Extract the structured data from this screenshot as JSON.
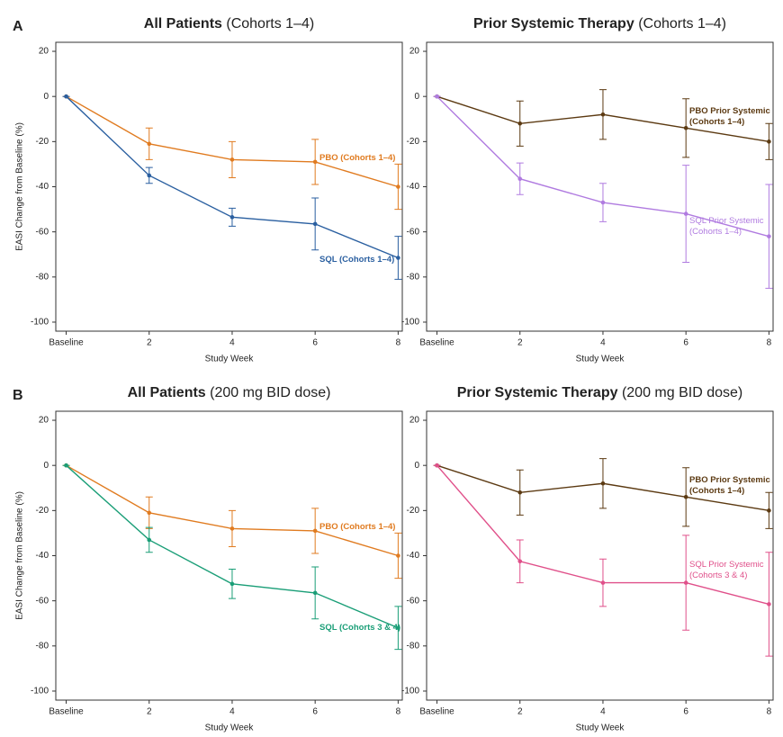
{
  "panel_labels": [
    "A",
    "B"
  ],
  "chart_data": [
    {
      "type": "line",
      "title": "All Patients",
      "title_note": "(Cohorts 1–4)",
      "xlabel": "Study Week",
      "ylabel": "EASI Change from Baseline (%)",
      "x": [
        0,
        2,
        4,
        6,
        8
      ],
      "xlim": [
        -0.25,
        8.1
      ],
      "xticks": [
        {
          "value": 0,
          "label": "Baseline"
        },
        2,
        4,
        6,
        8
      ],
      "ylim": [
        -104,
        24
      ],
      "yticks": [
        -100,
        -80,
        -60,
        -40,
        -20,
        0,
        20
      ],
      "series": [
        {
          "name": "PBO (Cohorts 1–4)",
          "color": "#e07b20",
          "values": [
            0,
            -21,
            -28,
            -29,
            -40
          ],
          "errors": [
            0,
            7,
            8,
            10,
            10
          ]
        },
        {
          "name": "SQL (Cohorts 1–4)",
          "color": "#2a5fa0",
          "values": [
            0,
            -35,
            -53.5,
            -56.5,
            -71.5
          ],
          "errors": [
            0,
            3.5,
            4,
            11.5,
            9.5
          ]
        }
      ]
    },
    {
      "type": "line",
      "title": "Prior Systemic Therapy",
      "title_note": "(Cohorts 1–4)",
      "xlabel": "Study Week",
      "x": [
        0,
        2,
        4,
        6,
        8
      ],
      "xlim": [
        -0.25,
        8.1
      ],
      "xticks": [
        {
          "value": 0,
          "label": "Baseline"
        },
        2,
        4,
        6,
        8
      ],
      "ylim": [
        -104,
        24
      ],
      "yticks": [
        -100,
        -80,
        -60,
        -40,
        -20,
        0,
        20
      ],
      "series": [
        {
          "name": "PBO Prior Systemic (Cohorts 1–4)",
          "color": "#5c3a12",
          "values": [
            0,
            -12,
            -8,
            -14,
            -20
          ],
          "errors": [
            0,
            10,
            11,
            13,
            8
          ]
        },
        {
          "name": "SQL Prior Systemic (Cohorts 1–4)",
          "color": "#b07be0",
          "values": [
            0,
            -36.5,
            -47,
            -52,
            -62
          ],
          "errors": [
            0,
            7,
            8.5,
            21.5,
            23
          ]
        }
      ]
    },
    {
      "type": "line",
      "title": "All Patients",
      "title_note": "(200 mg BID dose)",
      "xlabel": "Study Week",
      "ylabel": "EASI Change from Baseline (%)",
      "x": [
        0,
        2,
        4,
        6,
        8
      ],
      "xlim": [
        -0.25,
        8.1
      ],
      "xticks": [
        {
          "value": 0,
          "label": "Baseline"
        },
        2,
        4,
        6,
        8
      ],
      "ylim": [
        -104,
        24
      ],
      "yticks": [
        -100,
        -80,
        -60,
        -40,
        -20,
        0,
        20
      ],
      "series": [
        {
          "name": "PBO (Cohorts 1–4)",
          "color": "#e07b20",
          "values": [
            0,
            -21,
            -28,
            -29,
            -40
          ],
          "errors": [
            0,
            7,
            8,
            10,
            10
          ]
        },
        {
          "name": "SQL (Cohorts 3 & 4)",
          "color": "#1a9e77",
          "values": [
            0,
            -33,
            -52.5,
            -56.5,
            -72
          ],
          "errors": [
            0,
            5.5,
            6.5,
            11.5,
            9.5
          ]
        }
      ]
    },
    {
      "type": "line",
      "title": "Prior Systemic Therapy",
      "title_note": "(200 mg BID dose)",
      "xlabel": "Study Week",
      "x": [
        0,
        2,
        4,
        6,
        8
      ],
      "xlim": [
        -0.25,
        8.1
      ],
      "xticks": [
        {
          "value": 0,
          "label": "Baseline"
        },
        2,
        4,
        6,
        8
      ],
      "ylim": [
        -104,
        24
      ],
      "yticks": [
        -100,
        -80,
        -60,
        -40,
        -20,
        0,
        20
      ],
      "series": [
        {
          "name": "PBO Prior Systemic (Cohorts 1–4)",
          "color": "#5c3a12",
          "values": [
            0,
            -12,
            -8,
            -14,
            -20
          ],
          "errors": [
            0,
            10,
            11,
            13,
            8
          ]
        },
        {
          "name": "SQL Prior Systemic (Cohorts 3 & 4)",
          "color": "#e0508a",
          "values": [
            0,
            -42.5,
            -52,
            -52,
            -61.5
          ],
          "errors": [
            0,
            9.5,
            10.5,
            21,
            23
          ]
        }
      ]
    }
  ]
}
